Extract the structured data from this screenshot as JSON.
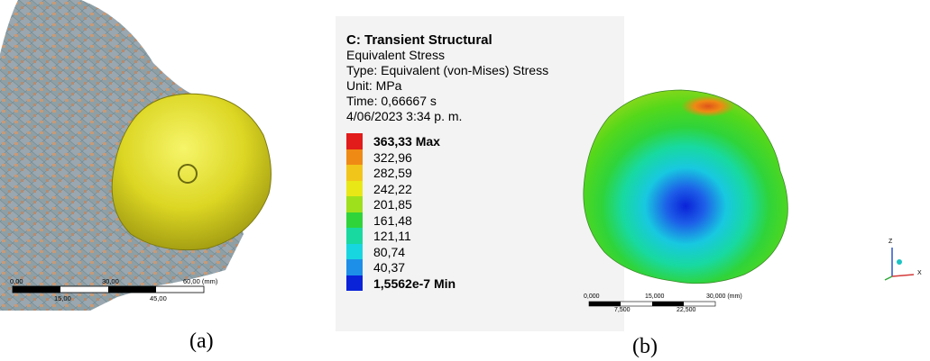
{
  "panel_a": {
    "caption": "(a)",
    "scale_top": [
      "0,00",
      "30,00",
      "60,00 (mm)"
    ],
    "scale_bottom": [
      "15,00",
      "45,00"
    ]
  },
  "info": {
    "title": "C: Transient Structural",
    "lines": [
      "Equivalent Stress",
      "Type: Equivalent (von-Mises) Stress",
      "Unit: MPa",
      "Time: 0,66667 s",
      "4/06/2023 3:34 p. m."
    ]
  },
  "legend": [
    {
      "label": "363,33 Max",
      "color": "#e21b1b",
      "bold": true
    },
    {
      "label": "322,96",
      "color": "#ef8a14",
      "bold": false
    },
    {
      "label": "282,59",
      "color": "#f2c51a",
      "bold": false
    },
    {
      "label": "242,22",
      "color": "#e9e816",
      "bold": false
    },
    {
      "label": "201,85",
      "color": "#9fe01c",
      "bold": false
    },
    {
      "label": "161,48",
      "color": "#2fd43a",
      "bold": false
    },
    {
      "label": "121,11",
      "color": "#18d9a0",
      "bold": false
    },
    {
      "label": "80,74",
      "color": "#18d6e0",
      "bold": false
    },
    {
      "label": "40,37",
      "color": "#1d8fe8",
      "bold": false
    },
    {
      "label": "1,5562e-7 Min",
      "color": "#0a22d8",
      "bold": true
    }
  ],
  "panel_b": {
    "caption": "(b)",
    "scale_top": [
      "0,000",
      "15,000",
      "30,000 (mm)"
    ],
    "scale_bottom": [
      "7,500",
      "22,500"
    ]
  },
  "triad": {
    "z": "Z",
    "x": "X"
  }
}
